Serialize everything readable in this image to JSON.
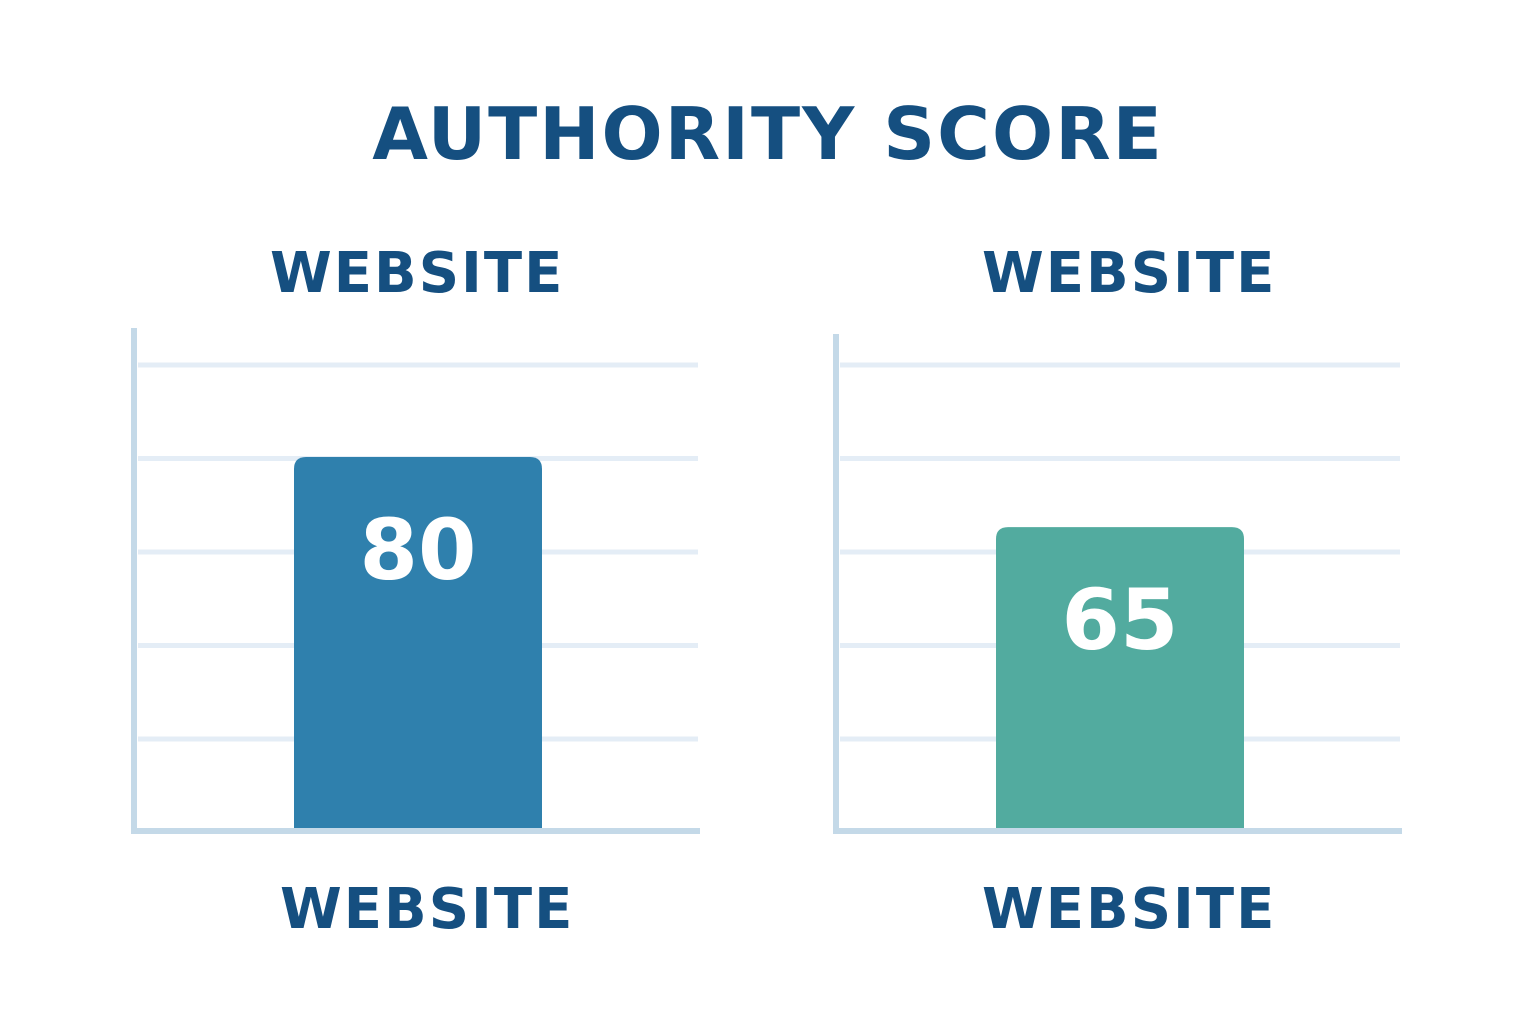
{
  "colors": {
    "title": "#154f80",
    "axis": "#c4d9e8",
    "grid": "#e4edf6",
    "bar_left": "#2f80ad",
    "bar_right": "#52ab9f",
    "value_text": "#ffffff"
  },
  "chart_data": {
    "type": "bar",
    "title": "AUTHORITY SCORE",
    "ylim": [
      0,
      100
    ],
    "grid": true,
    "panels": [
      {
        "top_label": "WEBSITE",
        "bottom_label": "WEBSITE",
        "value": 80,
        "value_label": "80",
        "color": "#2f80ad"
      },
      {
        "top_label": "WEBSITE",
        "bottom_label": "WEBSITE",
        "value": 65,
        "value_label": "65",
        "color": "#52ab9f"
      }
    ]
  }
}
